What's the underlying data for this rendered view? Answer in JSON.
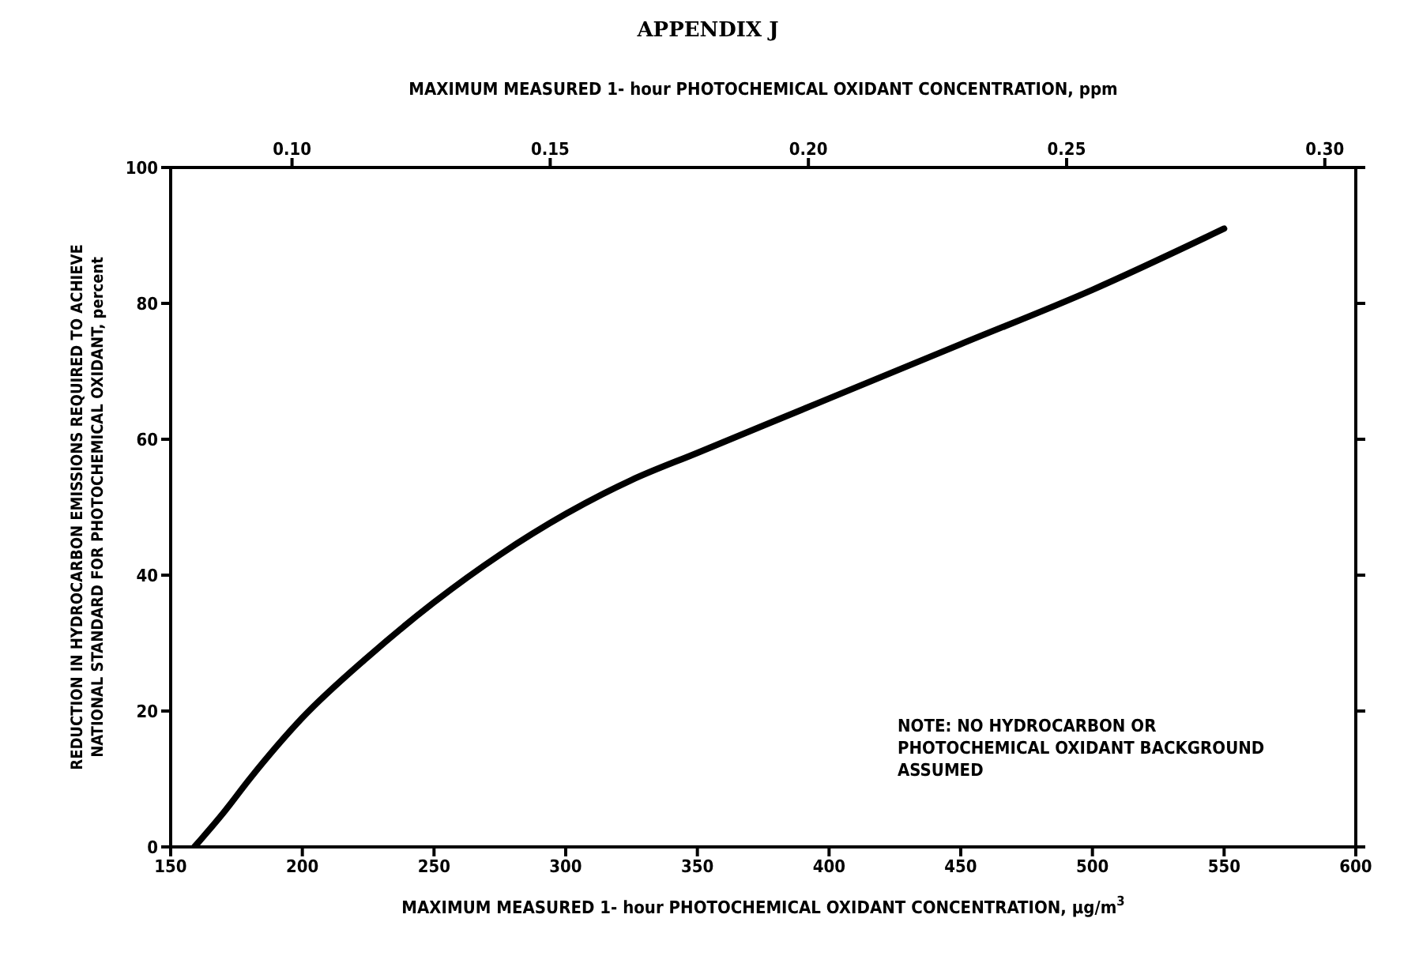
{
  "chart_data": {
    "type": "line",
    "title": "APPENDIX J",
    "xlabel": "MAXIMUM MEASURED 1- hour PHOTOCHEMICAL OXIDANT CONCENTRATION, μg/m$^{3}$",
    "x2label": "MAXIMUM MEASURED 1- hour PHOTOCHEMICAL OXIDANT CONCENTRATION, ppm",
    "ylabel": "REDUCTION IN HYDROCARBON EMISSIONS REQUIRED TO ACHIEVE NATIONAL STANDARD FOR PHOTOCHEMICAL OXIDANT, percent",
    "x": [
      159,
      170,
      180,
      200,
      225,
      250,
      275,
      300,
      325,
      350,
      400,
      450,
      500,
      550
    ],
    "series": [
      {
        "color": "#000000",
        "values": [
          0,
          5,
          10,
          19,
          28,
          36,
          43,
          49,
          54,
          58,
          66,
          74,
          82,
          91
        ]
      }
    ],
    "xlim": [
      150,
      600
    ],
    "xticks": [
      150,
      200,
      250,
      300,
      350,
      400,
      450,
      500,
      550,
      600
    ],
    "x2lim": [
      0.0765,
      0.306
    ],
    "x2ticks": [
      {
        "value": 0.1,
        "label": "0.10"
      },
      0.15,
      {
        "value": 0.2,
        "label": "0.20"
      },
      0.25,
      {
        "value": 0.3,
        "label": "0.30"
      }
    ],
    "ylim": [
      0,
      100
    ],
    "yticks": [
      0,
      20,
      40,
      60,
      80,
      100
    ],
    "grid": false,
    "legend": false,
    "marker": "none",
    "line_style": "solid",
    "annotations": [
      "NOTE: NO HYDROCARBON OR PHOTOCHEMICAL OXIDANT BACKGROUND ASSUMED"
    ]
  }
}
